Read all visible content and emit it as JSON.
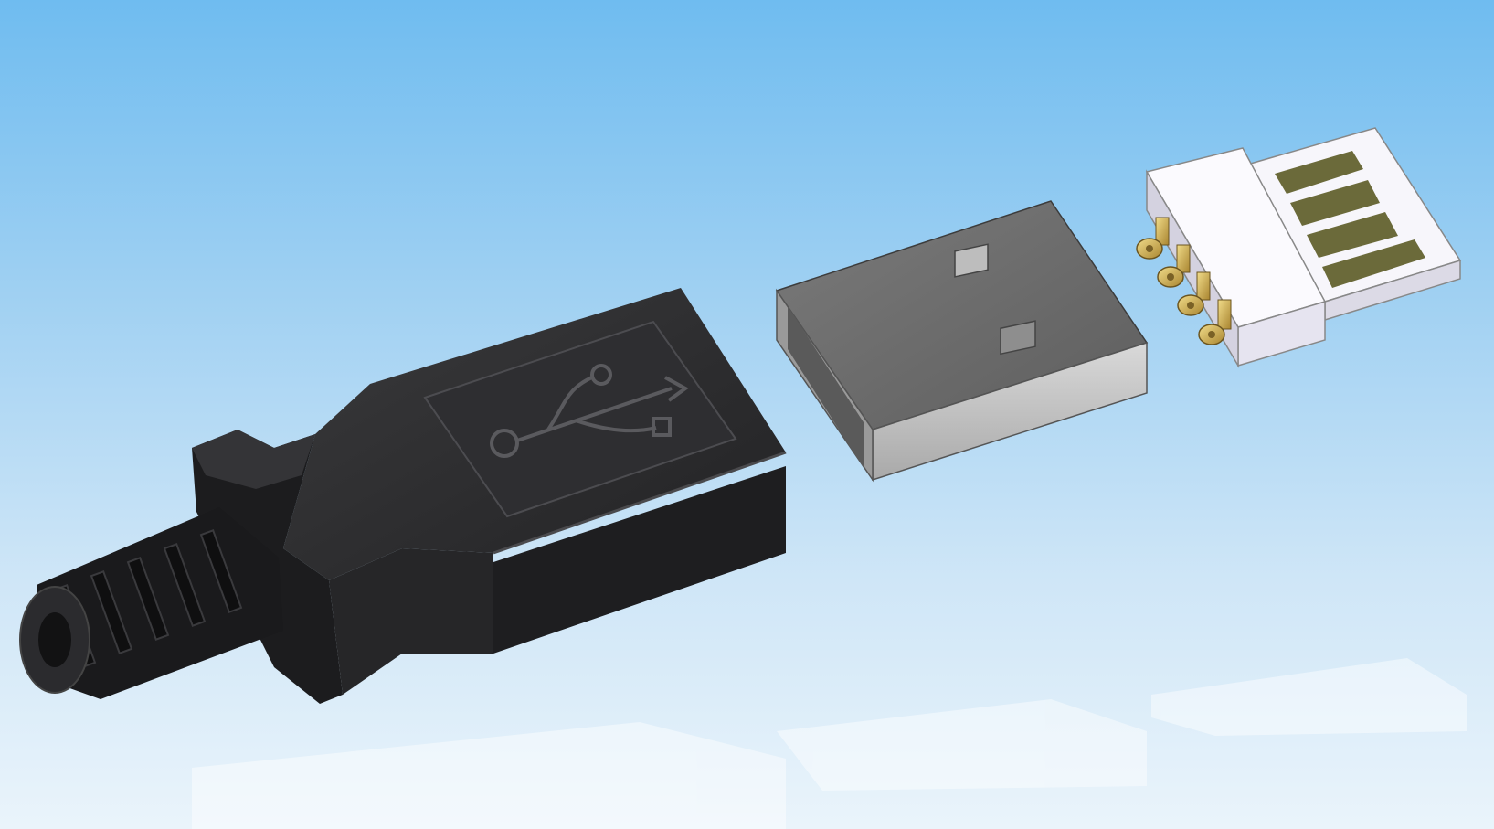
{
  "scene": {
    "background_top": "#6fbcf0",
    "background_bottom": "#eaf4fb",
    "parts": [
      {
        "name": "black-plastic-housing-with-strain-relief",
        "color": "#2a2a2c"
      },
      {
        "name": "metal-usb-a-shell",
        "color": "#6f6f6f"
      },
      {
        "name": "white-contact-insert-with-gold-pins",
        "color": "#f4f2fa",
        "contact_color": "#6b6a3a",
        "pin_color": "#c9a848"
      }
    ],
    "logo": "usb-trident-icon",
    "pin_count": 4
  }
}
